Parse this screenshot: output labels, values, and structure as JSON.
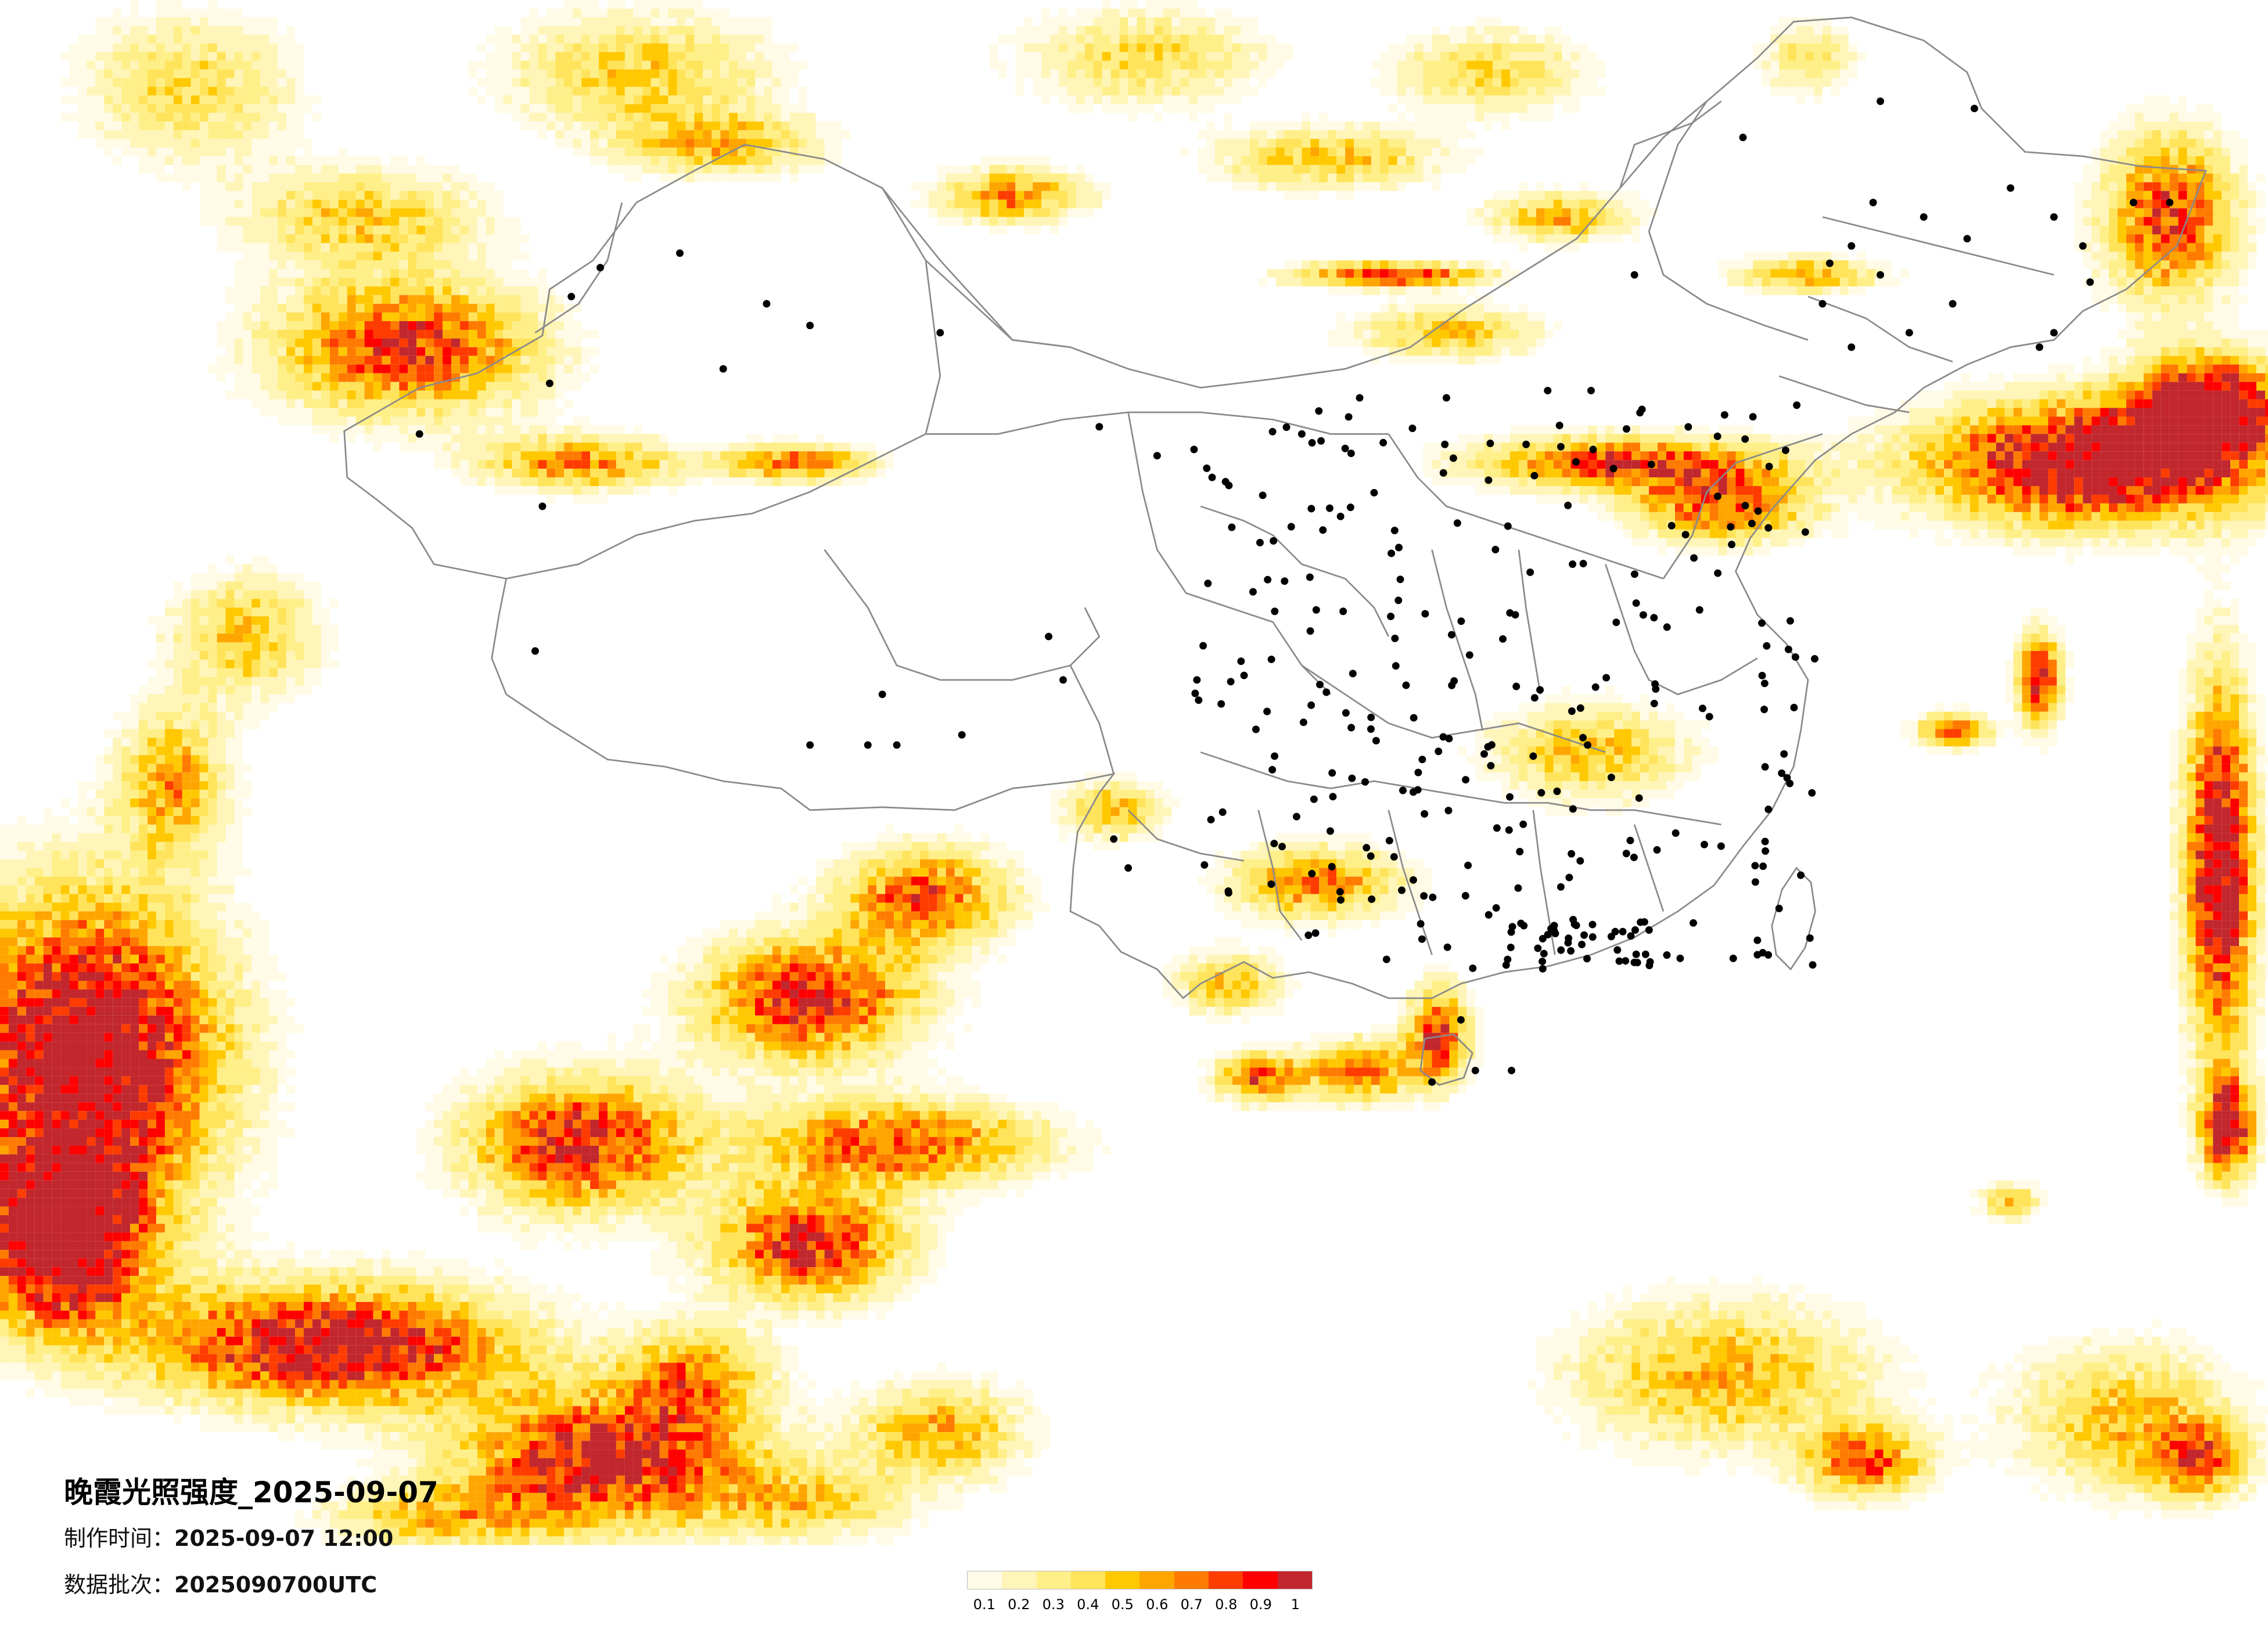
{
  "title": "晚霞光照强度_2025-09-07",
  "made_time": {
    "label": "制作时间：",
    "value": "2025-09-07 12:00"
  },
  "data_batch": {
    "label": "数据批次：",
    "value": "2025090700UTC"
  },
  "legend": {
    "labels": [
      "0.1",
      "0.2",
      "0.3",
      "0.4",
      "0.5",
      "0.6",
      "0.7",
      "0.8",
      "0.9",
      "1"
    ],
    "colors": [
      "#fffbe6",
      "#fff5b8",
      "#ffef88",
      "#ffe35a",
      "#ffc800",
      "#ffa500",
      "#ff7a00",
      "#ff3c00",
      "#ff0000",
      "#c1272d"
    ]
  },
  "map": {
    "subject": "sunset glow intensity",
    "boundary_color": "#8a8a8a",
    "city_marker_color": "#000000"
  }
}
